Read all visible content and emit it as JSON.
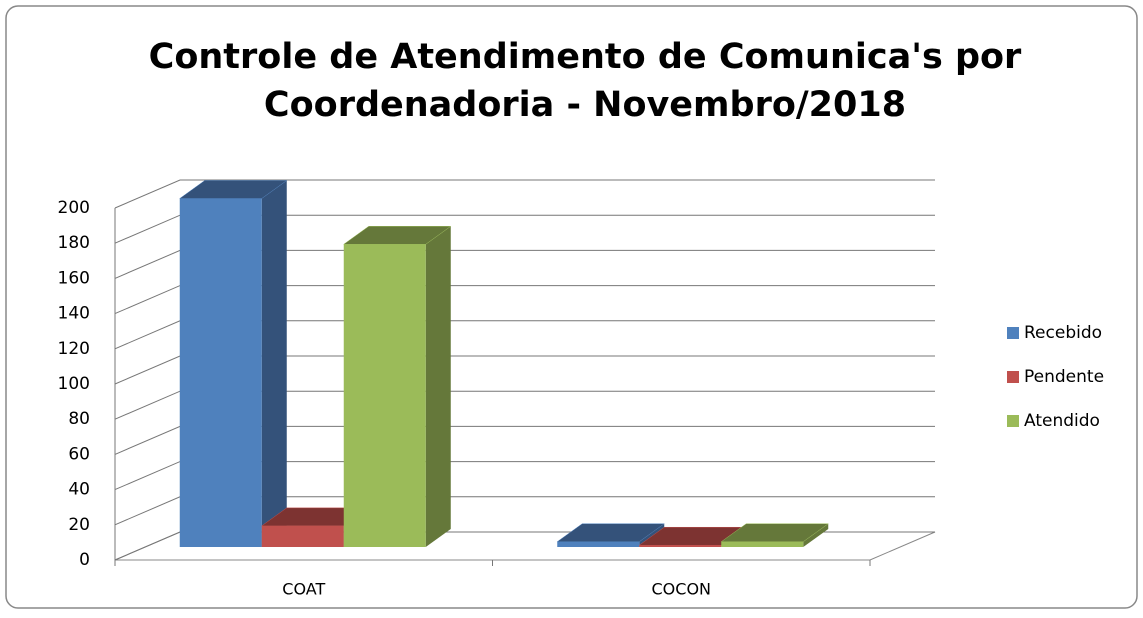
{
  "chart_data": {
    "type": "bar3d",
    "title": "Controle de Atendimento de Comunica's por Coordenadoria - Novembro/2018",
    "categories": [
      "COAT",
      "COCON"
    ],
    "series": [
      {
        "name": "Recebido",
        "color": "#4f81bd",
        "side": "#34527a",
        "values": [
          198,
          3
        ]
      },
      {
        "name": "Pendente",
        "color": "#c0504d",
        "side": "#7d3331",
        "values": [
          12,
          1
        ]
      },
      {
        "name": "Atendido",
        "color": "#9bbb59",
        "side": "#65783a",
        "values": [
          172,
          3
        ]
      }
    ],
    "ylim": [
      0,
      200
    ],
    "yticks": [
      0,
      20,
      40,
      60,
      80,
      100,
      120,
      140,
      160,
      180,
      200
    ],
    "grid": true,
    "legend": "right"
  }
}
